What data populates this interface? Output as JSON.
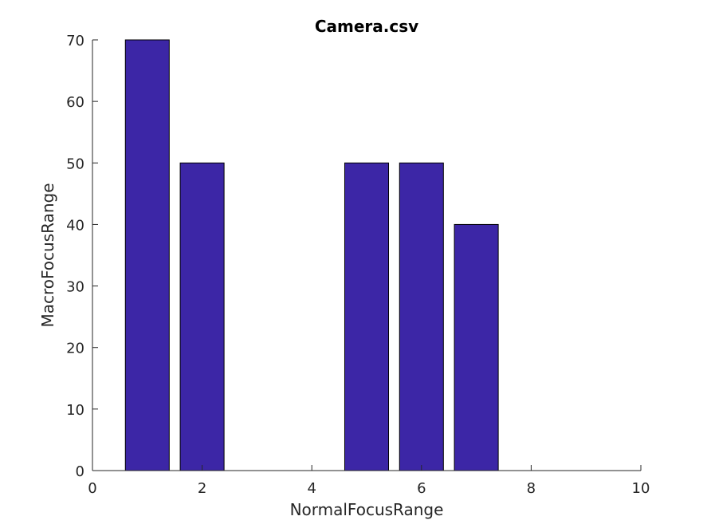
{
  "chart_data": {
    "type": "bar",
    "title": "Camera.csv",
    "xlabel": "NormalFocusRange",
    "ylabel": "MacroFocusRange",
    "x": [
      1,
      2,
      3,
      4,
      5,
      6,
      7,
      8,
      9
    ],
    "values": [
      70,
      50,
      0,
      0,
      50,
      50,
      40,
      0,
      0
    ],
    "xlim": [
      0,
      10
    ],
    "ylim": [
      0,
      70
    ],
    "xticks": [
      0,
      2,
      4,
      6,
      8,
      10
    ],
    "yticks": [
      0,
      10,
      20,
      30,
      40,
      50,
      60,
      70
    ],
    "bar_width": 0.8,
    "bar_color": "#3c26a6",
    "bar_edge_color": "#000000",
    "axis_color": "#262626",
    "grid": false
  }
}
